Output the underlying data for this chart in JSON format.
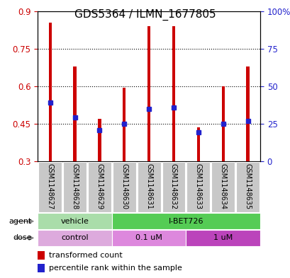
{
  "title": "GDS5364 / ILMN_1677805",
  "samples": [
    "GSM1148627",
    "GSM1148628",
    "GSM1148629",
    "GSM1148630",
    "GSM1148631",
    "GSM1148632",
    "GSM1148633",
    "GSM1148634",
    "GSM1148635"
  ],
  "bar_tops": [
    0.855,
    0.68,
    0.47,
    0.595,
    0.84,
    0.84,
    0.435,
    0.6,
    0.68
  ],
  "bar_bottom": 0.3,
  "blue_marks": [
    0.535,
    0.475,
    0.425,
    0.45,
    0.51,
    0.515,
    0.415,
    0.45,
    0.46
  ],
  "ylim_left": [
    0.3,
    0.9
  ],
  "ylim_right": [
    0,
    100
  ],
  "yticks_left": [
    0.3,
    0.45,
    0.6,
    0.75,
    0.9
  ],
  "yticks_right": [
    0,
    25,
    50,
    75,
    100
  ],
  "ytick_labels_left": [
    "0.3",
    "0.45",
    "0.6",
    "0.75",
    "0.9"
  ],
  "ytick_labels_right": [
    "0",
    "25",
    "50",
    "75",
    "100%"
  ],
  "bar_color": "#cc0000",
  "blue_color": "#2222cc",
  "agent_row": [
    {
      "label": "vehicle",
      "start": 0,
      "end": 3,
      "color": "#aaddaa"
    },
    {
      "label": "I-BET726",
      "start": 3,
      "end": 9,
      "color": "#55cc55"
    }
  ],
  "dose_row": [
    {
      "label": "control",
      "start": 0,
      "end": 3,
      "color": "#ddaadd"
    },
    {
      "label": "0.1 uM",
      "start": 3,
      "end": 6,
      "color": "#dd88dd"
    },
    {
      "label": "1 uM",
      "start": 6,
      "end": 9,
      "color": "#bb44bb"
    }
  ],
  "legend_red_label": "transformed count",
  "legend_blue_label": "percentile rank within the sample",
  "bar_width": 0.12,
  "title_fontsize": 11,
  "tick_fontsize": 8.5,
  "sample_fontsize": 7,
  "row_fontsize": 8,
  "legend_fontsize": 8
}
